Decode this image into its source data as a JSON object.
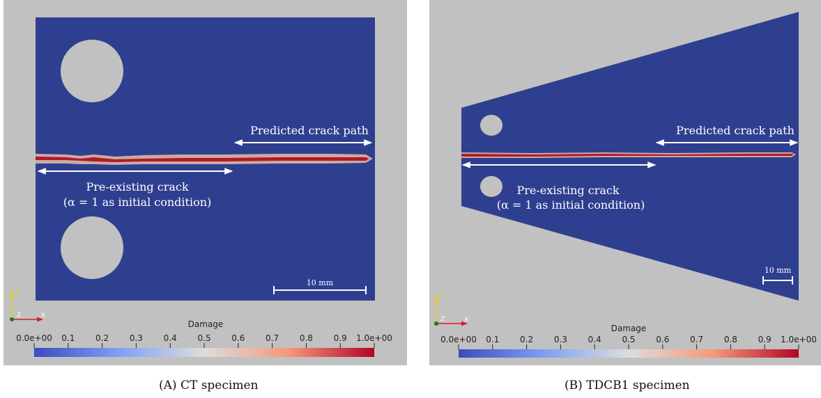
{
  "panels": [
    {
      "annotations": {
        "predicted": "Predicted crack path",
        "preexisting_line1": "Pre-existing crack",
        "preexisting_line2": "(α = 1 as initial condition)",
        "scale": "10 mm"
      },
      "colorbar": {
        "title": "Damage",
        "ticks": [
          "0.0e+00",
          "0.1",
          "0.2",
          "0.3",
          "0.4",
          "0.5",
          "0.6",
          "0.7",
          "0.8",
          "0.9",
          "1.0e+00"
        ]
      },
      "axes": {
        "y": "Y",
        "z": "Z",
        "x": "X"
      },
      "caption_letter": "(A)",
      "caption_text": "CT specimen"
    },
    {
      "annotations": {
        "predicted": "Predicted crack path",
        "preexisting_line1": "Pre-existing crack",
        "preexisting_line2": "(α = 1 as initial condition)",
        "scale": "10 mm"
      },
      "colorbar": {
        "title": "Damage",
        "ticks": [
          "0.0e+00",
          "0.1",
          "0.2",
          "0.3",
          "0.4",
          "0.5",
          "0.6",
          "0.7",
          "0.8",
          "0.9",
          "1.0e+00"
        ]
      },
      "axes": {
        "y": "Y",
        "z": "Z",
        "x": "X"
      },
      "caption_letter": "(B)",
      "caption_text": "TDCB1 specimen"
    }
  ],
  "colors": {
    "background": "#c1c1c1",
    "specimen": "#2f3f8f",
    "crack_core": "#b2182b",
    "arrow": "#ffffff",
    "colorbar_low": "#3b4cc0",
    "colorbar_mid": "#dddddd",
    "colorbar_high": "#b40426"
  }
}
